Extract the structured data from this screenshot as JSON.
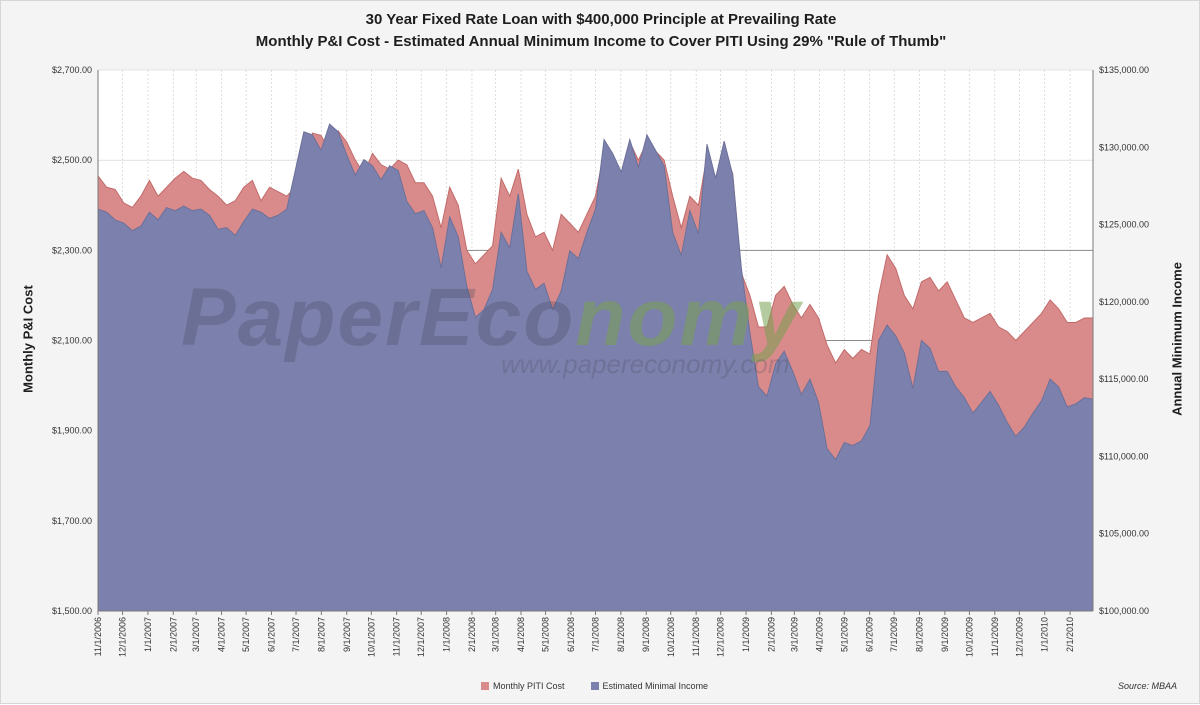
{
  "chart_data": {
    "type": "area",
    "title": "30 Year Fixed Rate Loan with $400,000 Principle at Prevailing Rate",
    "subtitle": "Monthly P&I Cost - Estimated Annual Minimum Income to Cover PITI Using 29% \"Rule of Thumb\"",
    "ylabel_left": "Monthly P&I Cost",
    "ylabel_right": "Annual Minimum Income",
    "ylim_left": [
      1500,
      2700
    ],
    "ylim_right": [
      100000,
      135000
    ],
    "yticks_left": [
      "$1,500.00",
      "$1,700.00",
      "$1,900.00",
      "$2,100.00",
      "$2,300.00",
      "$2,500.00",
      "$2,700.00"
    ],
    "yticks_right": [
      "$100,000.00",
      "$105,000.00",
      "$110,000.00",
      "$115,000.00",
      "$120,000.00",
      "$125,000.00",
      "$130,000.00",
      "$135,000.00"
    ],
    "x_start": "11/1/2006",
    "x_end": "3/1/2010",
    "x_ticks": [
      "11/1/2006",
      "12/1/2006",
      "1/1/2007",
      "2/1/2007",
      "3/1/2007",
      "4/1/2007",
      "5/1/2007",
      "6/1/2007",
      "7/1/2007",
      "8/1/2007",
      "9/1/2007",
      "10/1/2007",
      "11/1/2007",
      "12/1/2007",
      "1/1/2008",
      "2/1/2008",
      "3/1/2008",
      "4/1/2008",
      "5/1/2008",
      "6/1/2008",
      "7/1/2008",
      "8/1/2008",
      "9/1/2008",
      "10/1/2008",
      "11/1/2008",
      "12/1/2008",
      "1/1/2009",
      "2/1/2009",
      "3/1/2009",
      "4/1/2009",
      "5/1/2009",
      "6/1/2009",
      "7/1/2009",
      "8/1/2009",
      "9/1/2009",
      "10/1/2009",
      "11/1/2009",
      "12/1/2009",
      "1/1/2010",
      "2/1/2010"
    ],
    "grid": "horizontal and vertical",
    "legend_position": "bottom",
    "series": [
      {
        "name": "Monthly PITI Cost",
        "axis": "left",
        "color": "#d98b8b",
        "values": [
          2465,
          2440,
          2435,
          2405,
          2395,
          2420,
          2455,
          2420,
          2440,
          2460,
          2475,
          2460,
          2455,
          2435,
          2420,
          2400,
          2410,
          2440,
          2455,
          2410,
          2440,
          2430,
          2420,
          2440,
          2470,
          2560,
          2555,
          2520,
          2565,
          2540,
          2500,
          2470,
          2515,
          2490,
          2480,
          2500,
          2490,
          2450,
          2450,
          2420,
          2350,
          2440,
          2400,
          2300,
          2270,
          2290,
          2310,
          2460,
          2420,
          2480,
          2380,
          2330,
          2340,
          2300,
          2380,
          2360,
          2340,
          2380,
          2420,
          2520,
          2500,
          2460,
          2540,
          2500,
          2540,
          2520,
          2500,
          2420,
          2350,
          2420,
          2400,
          2510,
          2450,
          2520,
          2470,
          2250,
          2200,
          2130,
          2130,
          2200,
          2220,
          2180,
          2150,
          2180,
          2150,
          2090,
          2050,
          2080,
          2060,
          2080,
          2070,
          2200,
          2290,
          2260,
          2200,
          2170,
          2230,
          2240,
          2210,
          2230,
          2190,
          2150,
          2140,
          2150,
          2160,
          2130,
          2120,
          2100,
          2120,
          2140,
          2160,
          2190,
          2170,
          2140,
          2140,
          2150,
          2150
        ]
      },
      {
        "name": "Estimated Minimal Income",
        "axis": "right",
        "color": "#7c80ac",
        "values": [
          126000,
          125800,
          125300,
          125100,
          124600,
          124900,
          125800,
          125300,
          126100,
          125900,
          126200,
          125900,
          126000,
          125600,
          124700,
          124800,
          124300,
          125200,
          126000,
          125800,
          125400,
          125600,
          126000,
          128500,
          131000,
          130800,
          129800,
          131500,
          131000,
          129500,
          128200,
          129200,
          128800,
          127900,
          128800,
          128500,
          126500,
          125700,
          125900,
          124800,
          122200,
          125500,
          124200,
          121000,
          119000,
          119500,
          120800,
          124500,
          123500,
          127000,
          122000,
          120800,
          121200,
          119500,
          120700,
          123300,
          122800,
          124500,
          126000,
          130500,
          129600,
          128400,
          130500,
          128700,
          130800,
          129800,
          128800,
          124500,
          123000,
          125900,
          124400,
          130200,
          128000,
          130400,
          128200,
          122200,
          118000,
          114500,
          113900,
          116000,
          116800,
          115500,
          114000,
          115000,
          113500,
          110500,
          109800,
          110900,
          110700,
          111000,
          112000,
          117500,
          118500,
          117800,
          116700,
          114400,
          117500,
          117000,
          115500,
          115500,
          114500,
          113800,
          112800,
          113500,
          114200,
          113300,
          112200,
          111300,
          111900,
          112800,
          113600,
          115000,
          114500,
          113200,
          113400,
          113800,
          113700
        ]
      }
    ]
  },
  "watermark": {
    "part1": "PaperEco",
    "part2": "nomy",
    "url": "www.papereconomy.com"
  },
  "source": "Source: MBAA"
}
